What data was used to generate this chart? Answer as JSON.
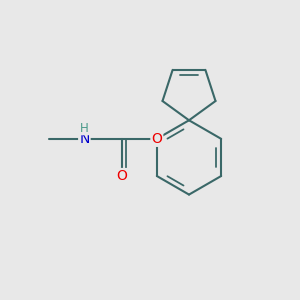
{
  "background_color": "#e8e8e8",
  "bond_color": "#3a6868",
  "bond_width": 1.5,
  "atom_colors": {
    "N": "#0000cc",
    "O": "#ee0000",
    "H": "#4a9a8a",
    "C": "#3a6868"
  },
  "font_size_atom": 10,
  "font_size_H": 8.5,
  "xlim": [
    0.0,
    3.2
  ],
  "ylim": [
    0.3,
    3.3
  ]
}
